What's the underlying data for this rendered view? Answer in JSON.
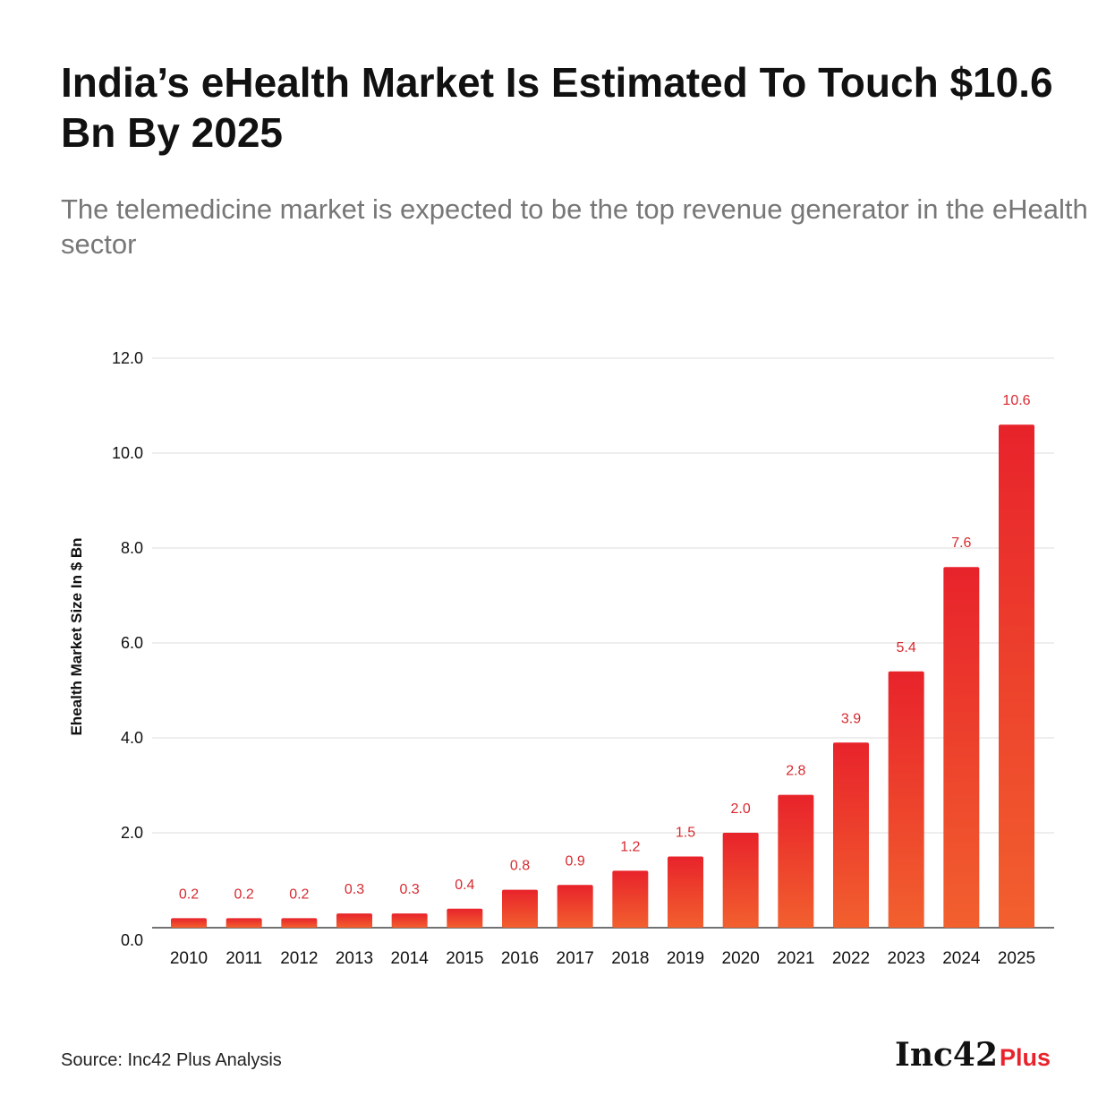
{
  "header": {
    "title": "India’s eHealth Market Is Estimated To Touch $10.6 Bn By 2025",
    "subtitle": "The telemedicine market is expected to be the top revenue generator in the eHealth sector"
  },
  "footer": {
    "source": "Source: Inc42 Plus Analysis",
    "logo_main": "Inc42",
    "logo_suffix": "Plus"
  },
  "colors": {
    "bar_top": "#e8232b",
    "bar_bottom": "#f2602e",
    "value_label": "#d62a2f",
    "gridline": "#dcdcdc",
    "axis_text": "#111111",
    "brand_red": "#e8232b"
  },
  "chart_data": {
    "type": "bar",
    "title": "",
    "xlabel": "",
    "ylabel": "Ehealth Market Size In $ Bn",
    "categories": [
      "2010",
      "2011",
      "2012",
      "2013",
      "2014",
      "2015",
      "2016",
      "2017",
      "2018",
      "2019",
      "2020",
      "2021",
      "2022",
      "2023",
      "2024",
      "2025"
    ],
    "values": [
      0.2,
      0.2,
      0.2,
      0.3,
      0.3,
      0.4,
      0.8,
      0.9,
      1.2,
      1.5,
      2.0,
      2.8,
      3.9,
      5.4,
      7.6,
      10.6
    ],
    "value_labels": [
      "0.2",
      "0.2",
      "0.2",
      "0.3",
      "0.3",
      "0.4",
      "0.8",
      "0.9",
      "1.2",
      "1.5",
      "2.0",
      "2.8",
      "3.9",
      "5.4",
      "7.6",
      "10.6"
    ],
    "ylim": [
      0,
      12
    ],
    "yticks": [
      0,
      2,
      4,
      6,
      8,
      10,
      12
    ],
    "ytick_labels": [
      "0.0",
      "2.0",
      "4.0",
      "6.0",
      "8.0",
      "10.0",
      "12.0"
    ],
    "grid": true,
    "legend": "none"
  }
}
